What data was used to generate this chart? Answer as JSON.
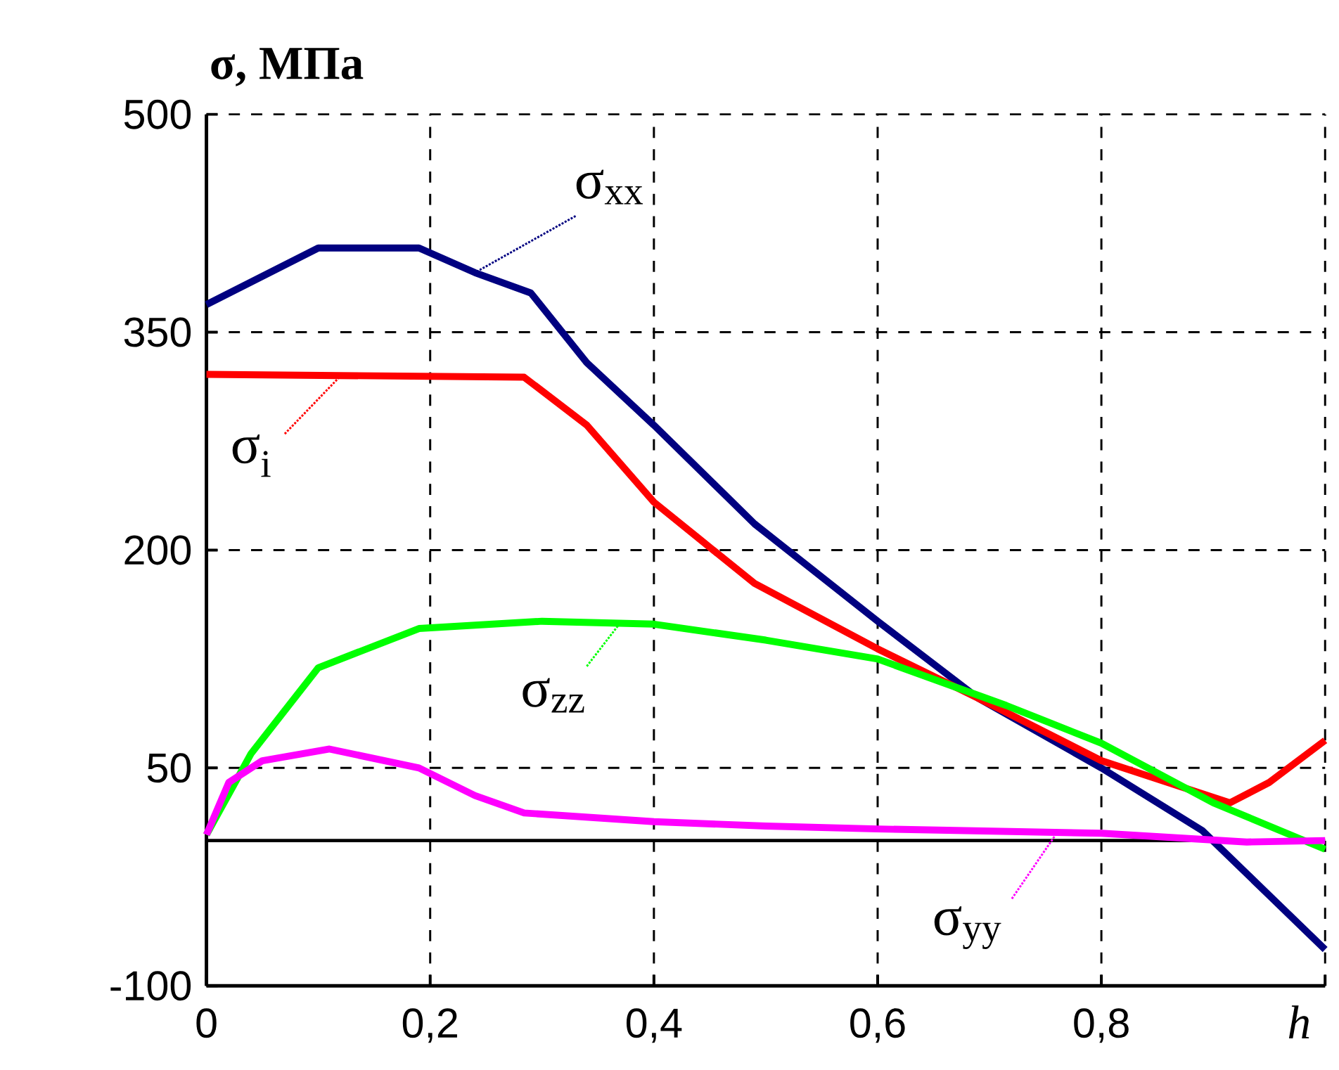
{
  "chart_data": {
    "type": "line",
    "ylabel": "σ, МПа",
    "xlabel": "h",
    "xlim": [
      0,
      1
    ],
    "ylim": [
      -100,
      500
    ],
    "xticks": [
      0,
      {
        "value": 0.2,
        "label": "0,2"
      },
      {
        "value": 0.4,
        "label": "0,4"
      },
      {
        "value": 0.6,
        "label": "0,6"
      },
      {
        "value": 0.8,
        "label": "0,8"
      },
      {
        "value": 1,
        "label": null
      }
    ],
    "yticks": [
      -100,
      50,
      200,
      350,
      500
    ],
    "grid": true,
    "ref_lines": [
      {
        "axis": "y",
        "value": 0,
        "color": "#000000"
      }
    ],
    "annotations": [
      {
        "text": "σ$_{xx}$",
        "x": 0.24,
        "y": 391
      },
      {
        "text": "σ$_{i}$",
        "x": 0.12,
        "y": 320
      },
      {
        "text": "σ$_{zz}$",
        "x": 0.37,
        "y": 150
      },
      {
        "text": "σ$_{yy}$",
        "x": 0.76,
        "y": 5
      }
    ],
    "series": [
      {
        "color": "#000080",
        "x": [
          0,
          0.1,
          0.19,
          0.24,
          0.29,
          0.34,
          0.4,
          0.49,
          0.6,
          0.69,
          0.8,
          0.89,
          1.0
        ],
        "values": [
          369,
          408,
          408,
          391,
          377,
          329,
          286,
          218,
          151,
          98,
          50,
          7,
          -75
        ]
      },
      {
        "color": "#ff0000",
        "x": [
          0,
          0.284,
          0.34,
          0.4,
          0.49,
          0.6,
          0.69,
          0.8,
          0.915,
          0.95,
          1.0
        ],
        "values": [
          321,
          319,
          286,
          233,
          177,
          132,
          98,
          55,
          26,
          40,
          69
        ]
      },
      {
        "color": "#00ff00",
        "x": [
          0,
          0.04,
          0.1,
          0.19,
          0.3,
          0.4,
          0.5,
          0.6,
          0.715,
          0.8,
          0.9,
          1.0
        ],
        "values": [
          4,
          60,
          119,
          146,
          151,
          149,
          138,
          125,
          93,
          67,
          26,
          -6
        ]
      },
      {
        "color": "#ff00ff",
        "x": [
          0,
          0.02,
          0.05,
          0.11,
          0.19,
          0.24,
          0.284,
          0.4,
          0.5,
          0.6,
          0.8,
          0.93,
          1.0
        ],
        "values": [
          4,
          40,
          55,
          63,
          50,
          31,
          19,
          13,
          10,
          8,
          5,
          -1,
          0
        ]
      }
    ]
  }
}
